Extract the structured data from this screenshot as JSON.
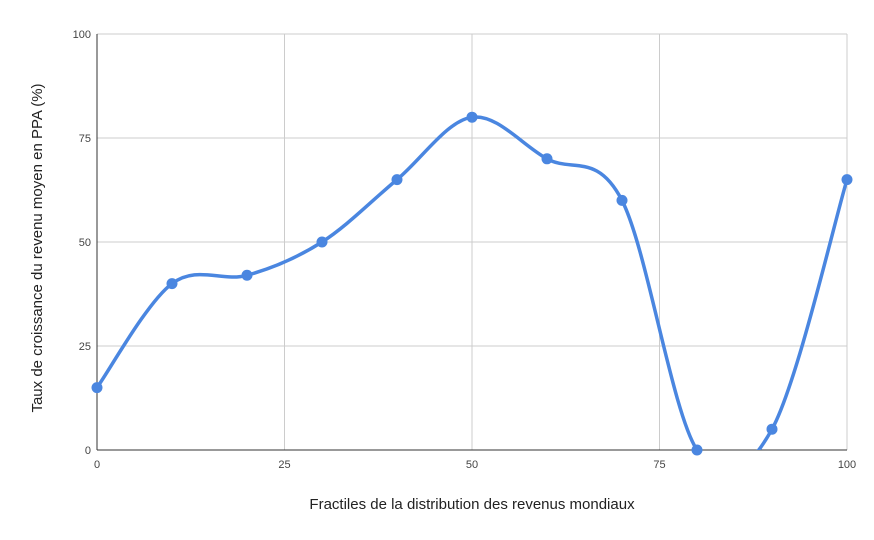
{
  "chart_data": {
    "type": "line",
    "smooth": true,
    "title": "",
    "xlabel": "Fractiles de la distribution des revenus mondiaux",
    "ylabel": "Taux de croissance du revenu moyen en PPA (%)",
    "xlim": [
      0,
      100
    ],
    "ylim": [
      0,
      100
    ],
    "xticks": [
      0,
      25,
      50,
      75,
      100
    ],
    "yticks": [
      0,
      25,
      50,
      75,
      100
    ],
    "grid": true,
    "legend": "none",
    "series": [
      {
        "color": "#4a86e0",
        "x": [
          0,
          10,
          20,
          30,
          40,
          50,
          60,
          70,
          80,
          90,
          100
        ],
        "y": [
          15,
          40,
          42,
          50,
          65,
          80,
          70,
          60,
          0,
          5,
          65
        ]
      }
    ]
  }
}
